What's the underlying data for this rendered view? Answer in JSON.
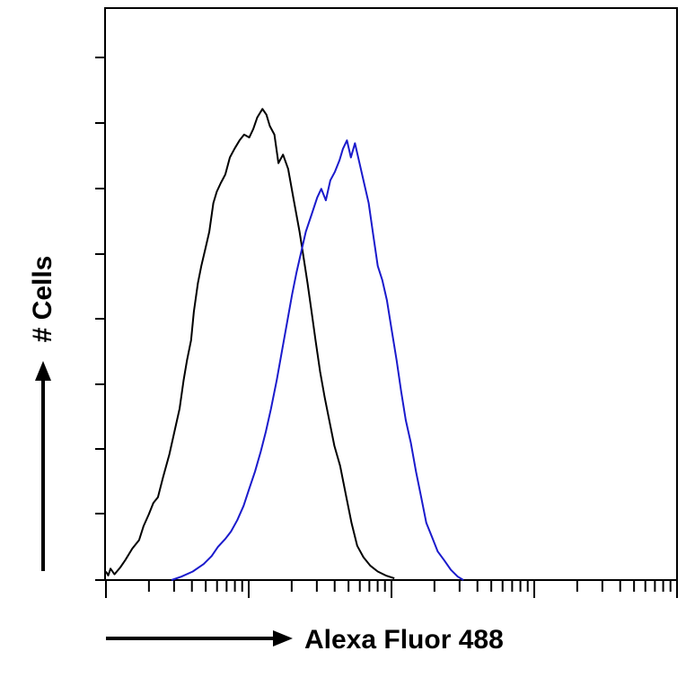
{
  "chart_data": {
    "type": "line",
    "title": "",
    "xlabel": "Alexa Fluor 488",
    "ylabel": "# Cells",
    "x_scale": "log",
    "xlim": [
      0,
      100
    ],
    "ylim": [
      0,
      100
    ],
    "grid": false,
    "legend": "none",
    "series": [
      {
        "color": "#000000",
        "points": [
          [
            0.0,
            1.5
          ],
          [
            0.4,
            0.8
          ],
          [
            0.8,
            2.0
          ],
          [
            1.5,
            1.0
          ],
          [
            2.5,
            2.2
          ],
          [
            3.4,
            3.5
          ],
          [
            4.6,
            5.5
          ],
          [
            5.8,
            7.0
          ],
          [
            6.6,
            9.5
          ],
          [
            7.5,
            11.5
          ],
          [
            8.3,
            13.5
          ],
          [
            9.1,
            14.5
          ],
          [
            10.0,
            18.0
          ],
          [
            11.1,
            22.0
          ],
          [
            12.0,
            26.0
          ],
          [
            12.9,
            30.0
          ],
          [
            13.6,
            35.0
          ],
          [
            14.2,
            38.5
          ],
          [
            14.9,
            42.0
          ],
          [
            15.4,
            47.0
          ],
          [
            16.1,
            52.0
          ],
          [
            16.7,
            55.0
          ],
          [
            17.4,
            58.0
          ],
          [
            18.1,
            61.0
          ],
          [
            18.8,
            66.0
          ],
          [
            19.4,
            68.0
          ],
          [
            20.1,
            69.5
          ],
          [
            20.9,
            71.0
          ],
          [
            21.7,
            74.0
          ],
          [
            22.5,
            75.5
          ],
          [
            23.4,
            77.0
          ],
          [
            24.2,
            78.0
          ],
          [
            25.1,
            77.5
          ],
          [
            25.8,
            79.0
          ],
          [
            26.5,
            81.0
          ],
          [
            27.4,
            82.5
          ],
          [
            28.1,
            81.5
          ],
          [
            28.7,
            79.5
          ],
          [
            29.5,
            78.0
          ],
          [
            30.2,
            73.0
          ],
          [
            31.0,
            74.5
          ],
          [
            31.9,
            72.0
          ],
          [
            32.9,
            66.5
          ],
          [
            33.9,
            61.0
          ],
          [
            34.6,
            56.5
          ],
          [
            35.3,
            52.0
          ],
          [
            36.0,
            47.0
          ],
          [
            36.7,
            42.0
          ],
          [
            37.5,
            36.5
          ],
          [
            38.3,
            32.0
          ],
          [
            39.2,
            27.5
          ],
          [
            40.0,
            23.5
          ],
          [
            41.0,
            20.0
          ],
          [
            42.0,
            15.0
          ],
          [
            43.0,
            10.0
          ],
          [
            44.0,
            6.0
          ],
          [
            45.1,
            4.0
          ],
          [
            46.3,
            2.5
          ],
          [
            47.6,
            1.5
          ],
          [
            49.0,
            0.8
          ],
          [
            50.5,
            0.3
          ]
        ]
      },
      {
        "color": "#1a1acc",
        "points": [
          [
            11.5,
            0.0
          ],
          [
            13.2,
            0.6
          ],
          [
            15.2,
            1.5
          ],
          [
            17.1,
            2.8
          ],
          [
            18.5,
            4.2
          ],
          [
            19.6,
            5.8
          ],
          [
            20.9,
            7.2
          ],
          [
            21.9,
            8.5
          ],
          [
            23.0,
            10.5
          ],
          [
            24.1,
            13.0
          ],
          [
            25.1,
            16.0
          ],
          [
            26.1,
            19.0
          ],
          [
            27.1,
            22.5
          ],
          [
            28.0,
            26.0
          ],
          [
            28.9,
            30.0
          ],
          [
            29.9,
            35.0
          ],
          [
            30.8,
            40.0
          ],
          [
            31.7,
            45.0
          ],
          [
            32.6,
            50.0
          ],
          [
            33.4,
            54.0
          ],
          [
            34.2,
            57.5
          ],
          [
            35.0,
            61.0
          ],
          [
            36.0,
            64.0
          ],
          [
            37.0,
            67.0
          ],
          [
            37.7,
            68.5
          ],
          [
            38.5,
            66.5
          ],
          [
            39.3,
            70.0
          ],
          [
            40.1,
            71.5
          ],
          [
            40.9,
            73.5
          ],
          [
            41.5,
            75.5
          ],
          [
            42.2,
            77.0
          ],
          [
            42.9,
            74.0
          ],
          [
            43.6,
            76.5
          ],
          [
            44.4,
            73.0
          ],
          [
            45.2,
            69.5
          ],
          [
            46.0,
            66.0
          ],
          [
            46.8,
            60.5
          ],
          [
            47.6,
            55.0
          ],
          [
            48.4,
            52.5
          ],
          [
            49.2,
            49.0
          ],
          [
            50.0,
            44.0
          ],
          [
            50.9,
            38.5
          ],
          [
            51.7,
            33.0
          ],
          [
            52.5,
            28.0
          ],
          [
            53.4,
            24.0
          ],
          [
            54.3,
            19.0
          ],
          [
            55.2,
            14.5
          ],
          [
            56.1,
            10.0
          ],
          [
            57.1,
            7.5
          ],
          [
            58.1,
            5.0
          ],
          [
            59.2,
            3.5
          ],
          [
            60.4,
            1.8
          ],
          [
            61.6,
            0.6
          ],
          [
            62.6,
            0.0
          ]
        ]
      }
    ]
  }
}
